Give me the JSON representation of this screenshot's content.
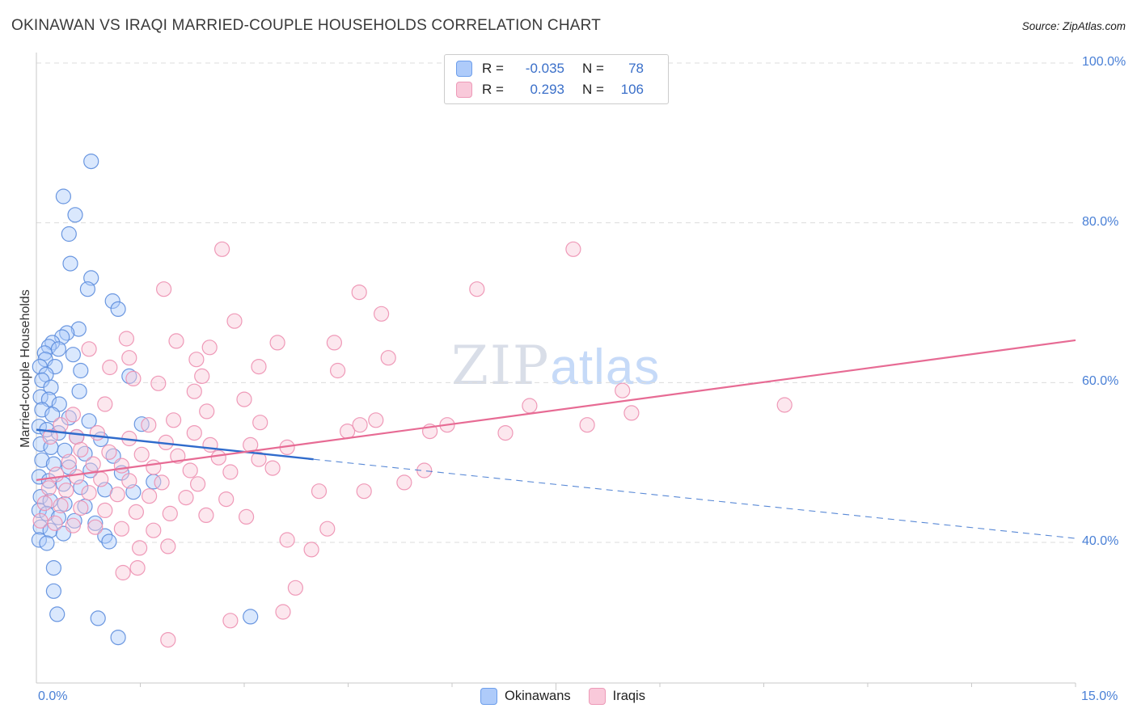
{
  "header": {
    "title": "OKINAWAN VS IRAQI MARRIED-COUPLE HOUSEHOLDS CORRELATION CHART",
    "source": "Source: ZipAtlas.com"
  },
  "legend_box": {
    "rows": [
      {
        "series": "Okinawans",
        "r_label": "R =",
        "r_value": "-0.035",
        "n_label": "N =",
        "n_value": "78"
      },
      {
        "series": "Iraqis",
        "r_label": "R =",
        "r_value": "0.293",
        "n_label": "N =",
        "n_value": "106"
      }
    ]
  },
  "watermark": {
    "zip": "ZIP",
    "atlas": "atlas"
  },
  "axes": {
    "y_label": "Married-couple Households",
    "x_min_label": "0.0%",
    "x_max_label": "15.0%",
    "y_tick_labels": [
      "100.0%",
      "80.0%",
      "60.0%",
      "40.0%"
    ]
  },
  "bottom_legend": [
    {
      "label": "Okinawans"
    },
    {
      "label": "Iraqis"
    }
  ],
  "colors": {
    "axis_text": "#4a80d6",
    "value_text": "#3a6fc9",
    "grid": "#dcdcdc",
    "axis_line": "#c9c9c9"
  },
  "chart_data": {
    "type": "scatter",
    "title": "OKINAWAN VS IRAQI MARRIED-COUPLE HOUSEHOLDS CORRELATION CHART",
    "xlabel": "",
    "ylabel": "Married-couple Households",
    "xlim": [
      0,
      15
    ],
    "ylim_visible": [
      22,
      102
    ],
    "x_axis_end_labels": [
      "0.0%",
      "15.0%"
    ],
    "y_grid_values": [
      40,
      60,
      80,
      100
    ],
    "y_tick_labels_right": [
      "40.0%",
      "60.0%",
      "80.0%",
      "100.0%"
    ],
    "grid": "horizontal-dashed",
    "legend_position": "top-center",
    "series": [
      {
        "name": "Okinawans",
        "R": -0.035,
        "N": 78,
        "fill": "#aecbfa",
        "stroke": "#5b8cdd",
        "stroke_strong": "#2f6bcc",
        "points": [
          [
            0.79,
            87.7
          ],
          [
            0.39,
            83.3
          ],
          [
            0.56,
            81.0
          ],
          [
            0.47,
            78.6
          ],
          [
            0.49,
            74.9
          ],
          [
            0.79,
            73.1
          ],
          [
            0.74,
            71.7
          ],
          [
            1.1,
            70.2
          ],
          [
            1.18,
            69.2
          ],
          [
            0.61,
            66.7
          ],
          [
            0.44,
            66.2
          ],
          [
            0.37,
            65.7
          ],
          [
            0.23,
            65.0
          ],
          [
            0.18,
            64.5
          ],
          [
            0.32,
            64.2
          ],
          [
            0.12,
            63.7
          ],
          [
            0.53,
            63.5
          ],
          [
            0.13,
            62.9
          ],
          [
            0.27,
            62.0
          ],
          [
            0.05,
            62.0
          ],
          [
            0.64,
            61.5
          ],
          [
            0.14,
            61.0
          ],
          [
            1.34,
            60.8
          ],
          [
            0.08,
            60.3
          ],
          [
            0.21,
            59.4
          ],
          [
            0.62,
            58.9
          ],
          [
            0.06,
            58.2
          ],
          [
            0.18,
            57.9
          ],
          [
            0.33,
            57.3
          ],
          [
            0.08,
            56.6
          ],
          [
            0.23,
            56.0
          ],
          [
            0.47,
            55.6
          ],
          [
            0.76,
            55.2
          ],
          [
            1.52,
            54.8
          ],
          [
            0.04,
            54.5
          ],
          [
            0.15,
            54.1
          ],
          [
            0.32,
            53.7
          ],
          [
            0.58,
            53.2
          ],
          [
            0.93,
            52.9
          ],
          [
            0.06,
            52.3
          ],
          [
            0.21,
            51.9
          ],
          [
            0.41,
            51.5
          ],
          [
            0.7,
            51.1
          ],
          [
            1.11,
            50.8
          ],
          [
            0.08,
            50.3
          ],
          [
            0.25,
            49.8
          ],
          [
            0.47,
            49.4
          ],
          [
            0.78,
            49.0
          ],
          [
            1.23,
            48.7
          ],
          [
            0.04,
            48.2
          ],
          [
            0.18,
            47.7
          ],
          [
            1.69,
            47.6
          ],
          [
            0.39,
            47.3
          ],
          [
            0.64,
            46.9
          ],
          [
            0.99,
            46.6
          ],
          [
            1.4,
            46.3
          ],
          [
            0.06,
            45.7
          ],
          [
            0.2,
            45.2
          ],
          [
            0.41,
            44.8
          ],
          [
            0.7,
            44.5
          ],
          [
            0.04,
            44.0
          ],
          [
            0.15,
            43.6
          ],
          [
            0.32,
            43.1
          ],
          [
            0.55,
            42.7
          ],
          [
            0.85,
            42.4
          ],
          [
            0.06,
            41.9
          ],
          [
            0.2,
            41.5
          ],
          [
            0.39,
            41.1
          ],
          [
            0.99,
            40.8
          ],
          [
            1.05,
            40.1
          ],
          [
            0.04,
            40.3
          ],
          [
            0.15,
            39.9
          ],
          [
            0.25,
            36.8
          ],
          [
            0.25,
            33.9
          ],
          [
            0.3,
            31.0
          ],
          [
            0.89,
            30.5
          ],
          [
            1.18,
            28.1
          ],
          [
            3.09,
            30.7
          ]
        ]
      },
      {
        "name": "Iraqis",
        "R": 0.293,
        "N": 106,
        "fill": "#f9c9da",
        "stroke": "#ed8fb0",
        "stroke_strong": "#e76b94",
        "points": [
          [
            2.68,
            76.7
          ],
          [
            7.75,
            76.7
          ],
          [
            1.84,
            71.7
          ],
          [
            4.66,
            71.3
          ],
          [
            6.36,
            71.7
          ],
          [
            4.98,
            68.6
          ],
          [
            2.86,
            67.7
          ],
          [
            1.3,
            65.5
          ],
          [
            0.76,
            64.2
          ],
          [
            3.48,
            65.0
          ],
          [
            4.3,
            65.0
          ],
          [
            2.5,
            64.4
          ],
          [
            2.02,
            65.2
          ],
          [
            2.31,
            62.9
          ],
          [
            1.06,
            61.9
          ],
          [
            1.34,
            63.1
          ],
          [
            3.21,
            62.0
          ],
          [
            2.39,
            60.8
          ],
          [
            1.4,
            60.5
          ],
          [
            1.76,
            59.9
          ],
          [
            8.46,
            59.0
          ],
          [
            10.8,
            57.2
          ],
          [
            8.59,
            56.2
          ],
          [
            7.95,
            54.7
          ],
          [
            7.12,
            57.1
          ],
          [
            2.46,
            56.4
          ],
          [
            1.98,
            55.3
          ],
          [
            1.62,
            54.7
          ],
          [
            3.23,
            55.0
          ],
          [
            4.9,
            55.3
          ],
          [
            5.93,
            54.7
          ],
          [
            4.49,
            53.9
          ],
          [
            5.68,
            53.9
          ],
          [
            2.28,
            53.7
          ],
          [
            0.88,
            53.7
          ],
          [
            0.58,
            53.2
          ],
          [
            1.34,
            53.0
          ],
          [
            1.87,
            52.5
          ],
          [
            2.51,
            52.2
          ],
          [
            3.09,
            52.2
          ],
          [
            3.62,
            51.9
          ],
          [
            0.64,
            51.6
          ],
          [
            1.05,
            51.3
          ],
          [
            1.52,
            51.0
          ],
          [
            2.04,
            50.8
          ],
          [
            2.63,
            50.6
          ],
          [
            3.21,
            50.4
          ],
          [
            0.47,
            50.1
          ],
          [
            0.82,
            49.8
          ],
          [
            1.23,
            49.6
          ],
          [
            1.69,
            49.4
          ],
          [
            2.22,
            49.0
          ],
          [
            2.8,
            48.8
          ],
          [
            3.41,
            49.3
          ],
          [
            0.29,
            48.5
          ],
          [
            0.58,
            48.2
          ],
          [
            0.93,
            47.9
          ],
          [
            1.34,
            47.7
          ],
          [
            1.81,
            47.5
          ],
          [
            2.33,
            47.3
          ],
          [
            0.18,
            46.8
          ],
          [
            0.43,
            46.5
          ],
          [
            0.76,
            46.2
          ],
          [
            1.17,
            46.0
          ],
          [
            1.63,
            45.8
          ],
          [
            2.16,
            45.6
          ],
          [
            2.74,
            45.4
          ],
          [
            0.12,
            44.9
          ],
          [
            0.35,
            44.6
          ],
          [
            0.64,
            44.3
          ],
          [
            0.99,
            44.0
          ],
          [
            1.44,
            43.8
          ],
          [
            1.93,
            43.6
          ],
          [
            2.45,
            43.4
          ],
          [
            3.03,
            43.2
          ],
          [
            0.06,
            42.7
          ],
          [
            0.27,
            42.4
          ],
          [
            0.53,
            42.1
          ],
          [
            0.85,
            41.9
          ],
          [
            1.23,
            41.7
          ],
          [
            1.69,
            41.5
          ],
          [
            4.2,
            41.7
          ],
          [
            3.62,
            40.3
          ],
          [
            3.97,
            39.1
          ],
          [
            1.49,
            39.3
          ],
          [
            1.9,
            39.5
          ],
          [
            1.46,
            36.8
          ],
          [
            3.74,
            34.3
          ],
          [
            3.56,
            31.3
          ],
          [
            2.8,
            30.2
          ],
          [
            1.9,
            27.8
          ],
          [
            1.25,
            36.2
          ],
          [
            4.73,
            46.4
          ],
          [
            5.31,
            47.5
          ],
          [
            5.08,
            63.1
          ],
          [
            4.35,
            61.5
          ],
          [
            6.77,
            53.7
          ],
          [
            5.6,
            49.0
          ],
          [
            4.67,
            54.7
          ],
          [
            4.08,
            46.4
          ],
          [
            3.0,
            57.9
          ],
          [
            2.28,
            58.9
          ],
          [
            0.99,
            57.3
          ],
          [
            0.53,
            56.0
          ],
          [
            0.35,
            54.7
          ],
          [
            0.2,
            53.2
          ]
        ]
      }
    ],
    "trend_lines": [
      {
        "series": "Okinawans",
        "R": -0.035,
        "solid": [
          [
            0,
            54.1
          ],
          [
            4.0,
            50.4
          ]
        ],
        "dashed": [
          [
            4.0,
            50.4
          ],
          [
            15,
            40.5
          ]
        ]
      },
      {
        "series": "Iraqis",
        "R": 0.293,
        "solid": [
          [
            0,
            47.8
          ],
          [
            15,
            65.3
          ]
        ]
      }
    ]
  }
}
